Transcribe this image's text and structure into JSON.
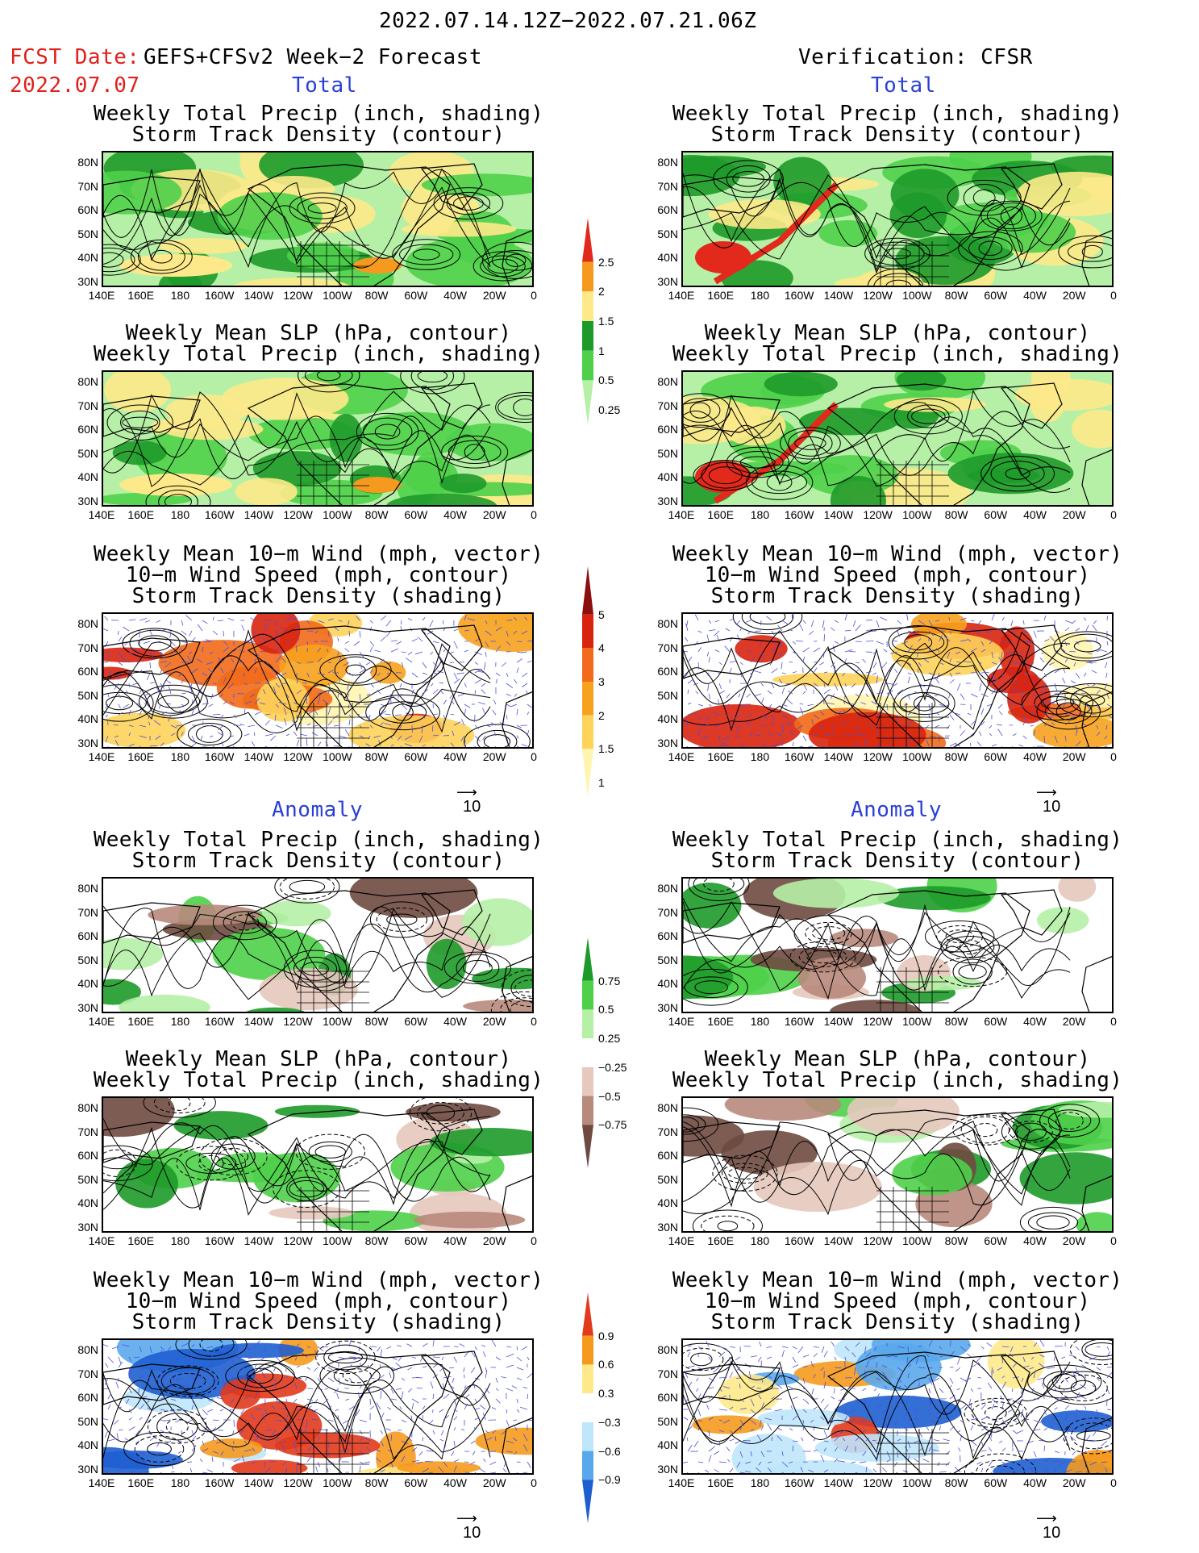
{
  "header": {
    "title": "2022.07.14.12Z−2022.07.21.06Z",
    "fcst_date_label": "FCST Date:",
    "fcst_date_value": "2022.07.07",
    "forecast_title": "GEFS+CFSv2 Week−2 Forecast",
    "verification_title": "Verification: CFSR"
  },
  "sections": {
    "total": "Total",
    "anomaly": "Anomaly"
  },
  "panel_titles": {
    "precip_storm": [
      "Weekly Total Precip (inch, shading)",
      "Storm Track Density (contour)"
    ],
    "slp_precip": [
      "Weekly Mean SLP (hPa, contour)",
      "Weekly Total Precip (inch, shading)"
    ],
    "wind_storm": [
      "Weekly Mean 10−m Wind (mph, vector)",
      "10−m Wind Speed (mph, contour)",
      "Storm Track Density (shading)"
    ]
  },
  "axes": {
    "lat_labels": [
      "80N",
      "70N",
      "60N",
      "50N",
      "40N",
      "30N"
    ],
    "lon_labels": [
      "140E",
      "160E",
      "180",
      "160W",
      "140W",
      "120W",
      "100W",
      "80W",
      "60W",
      "40W",
      "20W",
      "0"
    ]
  },
  "colorbars": {
    "precip_total": {
      "labels": [
        "2.5",
        "2",
        "1.5",
        "1",
        "0.5",
        "0.25"
      ],
      "colors": [
        "#e2291c",
        "#f59a1e",
        "#fde98a",
        "#1e9a2a",
        "#4fd04a",
        "#b6f0a6"
      ]
    },
    "storm_total": {
      "labels": [
        "5",
        "4",
        "3",
        "2",
        "1.5",
        "1"
      ],
      "colors": [
        "#8b0f0f",
        "#d8230f",
        "#f26a1b",
        "#f7a21e",
        "#fdd35a",
        "#fff5b0"
      ]
    },
    "precip_anom": {
      "labels": [
        "0.75",
        "0.5",
        "0.25",
        "−0.25",
        "−0.5",
        "−0.75"
      ],
      "colors": [
        "#1e9a2a",
        "#4fd04a",
        "#b6f0a6",
        "#ffffff",
        "#e6c8bc",
        "#b88a7c",
        "#6e4a40"
      ]
    },
    "storm_anom": {
      "labels": [
        "0.9",
        "0.6",
        "0.3",
        "−0.3",
        "−0.6",
        "−0.9"
      ],
      "colors": [
        "#e23a1c",
        "#f59a1e",
        "#fde98a",
        "#ffffff",
        "#bfe6fb",
        "#5aa8ec",
        "#1e5fd0"
      ]
    }
  },
  "vector_reference": "10"
}
